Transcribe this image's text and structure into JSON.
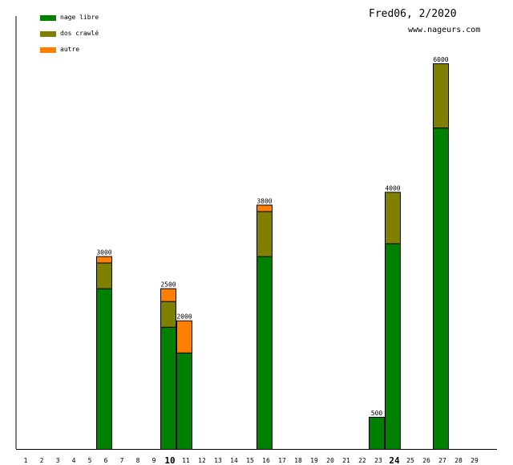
{
  "chart_data": {
    "type": "bar",
    "stacked": true,
    "title": "Fred06, 2/2020",
    "subtitle": "www.nageurs.com",
    "categories": [
      "1",
      "2",
      "3",
      "4",
      "5",
      "6",
      "7",
      "8",
      "9",
      "10",
      "11",
      "12",
      "13",
      "14",
      "15",
      "16",
      "17",
      "18",
      "19",
      "20",
      "21",
      "22",
      "23",
      "24",
      "25",
      "26",
      "27",
      "28",
      "29"
    ],
    "bold_categories": [
      "10",
      "24"
    ],
    "series": [
      {
        "name": "nage libre",
        "color": "#008000",
        "values": [
          0,
          0,
          0,
          0,
          0,
          2500,
          0,
          0,
          0,
          1900,
          1500,
          0,
          0,
          0,
          0,
          3000,
          0,
          0,
          0,
          0,
          0,
          0,
          500,
          3200,
          0,
          0,
          5000,
          0,
          0
        ]
      },
      {
        "name": "dos crawlé",
        "color": "#808000",
        "values": [
          0,
          0,
          0,
          0,
          0,
          400,
          0,
          0,
          0,
          400,
          0,
          0,
          0,
          0,
          0,
          700,
          0,
          0,
          0,
          0,
          0,
          0,
          0,
          800,
          0,
          0,
          1000,
          0,
          0
        ]
      },
      {
        "name": "autre",
        "color": "#ff8000",
        "values": [
          0,
          0,
          0,
          0,
          0,
          100,
          0,
          0,
          0,
          200,
          500,
          0,
          0,
          0,
          0,
          100,
          0,
          0,
          0,
          0,
          0,
          0,
          0,
          0,
          0,
          0,
          0,
          0,
          0
        ]
      }
    ],
    "totals": [
      "",
      "",
      "",
      "",
      "",
      "3000",
      "",
      "",
      "",
      "2500",
      "2000",
      "",
      "",
      "",
      "",
      "3800",
      "",
      "",
      "",
      "",
      "",
      "",
      "500",
      "4000",
      "",
      "",
      "6000",
      "",
      ""
    ],
    "ylim": [
      0,
      6000
    ],
    "legend": "top-left",
    "grid": false
  }
}
